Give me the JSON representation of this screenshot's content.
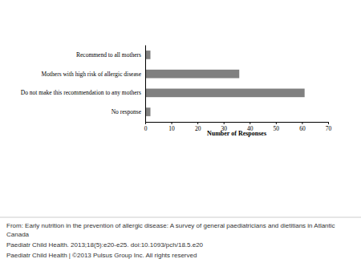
{
  "chart_data": {
    "type": "bar",
    "orientation": "horizontal",
    "categories": [
      "Recommend to all mothers",
      "Mothers with high risk of allergic disease",
      "Do not make this recommendation to any mothers",
      "No response"
    ],
    "values": [
      2,
      36,
      61,
      2
    ],
    "color": "#808080",
    "x_label": "Number of Responses",
    "xlim": [
      0,
      70
    ],
    "xticks": [
      0,
      10,
      20,
      30,
      40,
      50,
      60,
      70
    ],
    "grid": false,
    "data_labels": false,
    "annotations": [
      "From: Early nutrition in the prevention of allergic disease: A survey of general paediatricians and dietitians in Atlantic Canada",
      "Paediatr Child Health. 2013;18(5):e20-e25. doi:10.1093/pch/18.5.e20",
      "Paediatr Child Health | ©2013 Pulsus Group Inc. All rights reserved"
    ]
  }
}
